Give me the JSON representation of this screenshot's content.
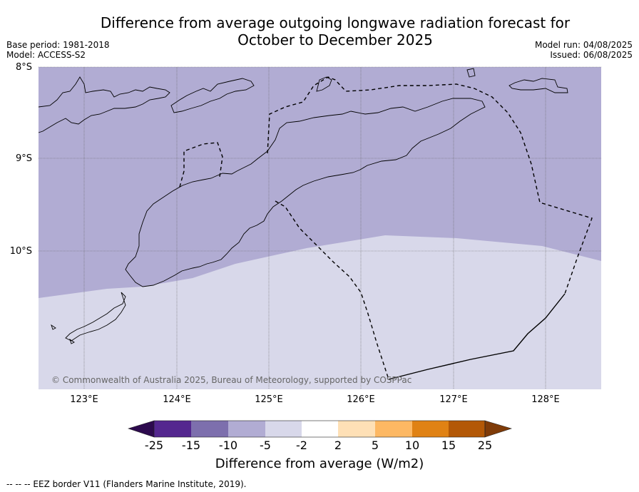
{
  "title_line1": "Difference from average outgoing longwave radiation forecast for",
  "title_line2": "October to December 2025",
  "base_period": "Base period: 1981-2018",
  "model": "Model: ACCESS-S2",
  "model_run": "Model run: 04/08/2025",
  "issued": "Issued: 06/08/2025",
  "map": {
    "lat_labels": [
      "8°S",
      "9°S",
      "10°S"
    ],
    "lon_labels": [
      "123°E",
      "124°E",
      "125°E",
      "126°E",
      "127°E",
      "128°E"
    ],
    "copyright": "© Commonwealth of Australia 2025, Bureau of Meteorology, supported by COSPPac",
    "colors": {
      "anomaly_-10_to_-5": "#b1acd3",
      "anomaly_-5_to_-2": "#d8d8ea",
      "coastline": "#000000",
      "eez_border": "#000000"
    },
    "features": [
      "Timor coastline",
      "Wetar / Alor islands",
      "Rote island",
      "EEZ border (dashed)"
    ]
  },
  "colorbar": {
    "labels": [
      "-25",
      "-15",
      "-10",
      "-5",
      "-2",
      "2",
      "5",
      "10",
      "15",
      "25"
    ],
    "colors": [
      "#2d0a4e",
      "#54278f",
      "#7d6fad",
      "#b1acd3",
      "#d8d8ea",
      "#ffffff",
      "#fee0b6",
      "#fdb863",
      "#e08214",
      "#b35806",
      "#7f3b08"
    ],
    "title": "Difference from average (W/m2)"
  },
  "footnote": "--  --  -- EEZ border V11 (Flanders Marine Institute, 2019)."
}
